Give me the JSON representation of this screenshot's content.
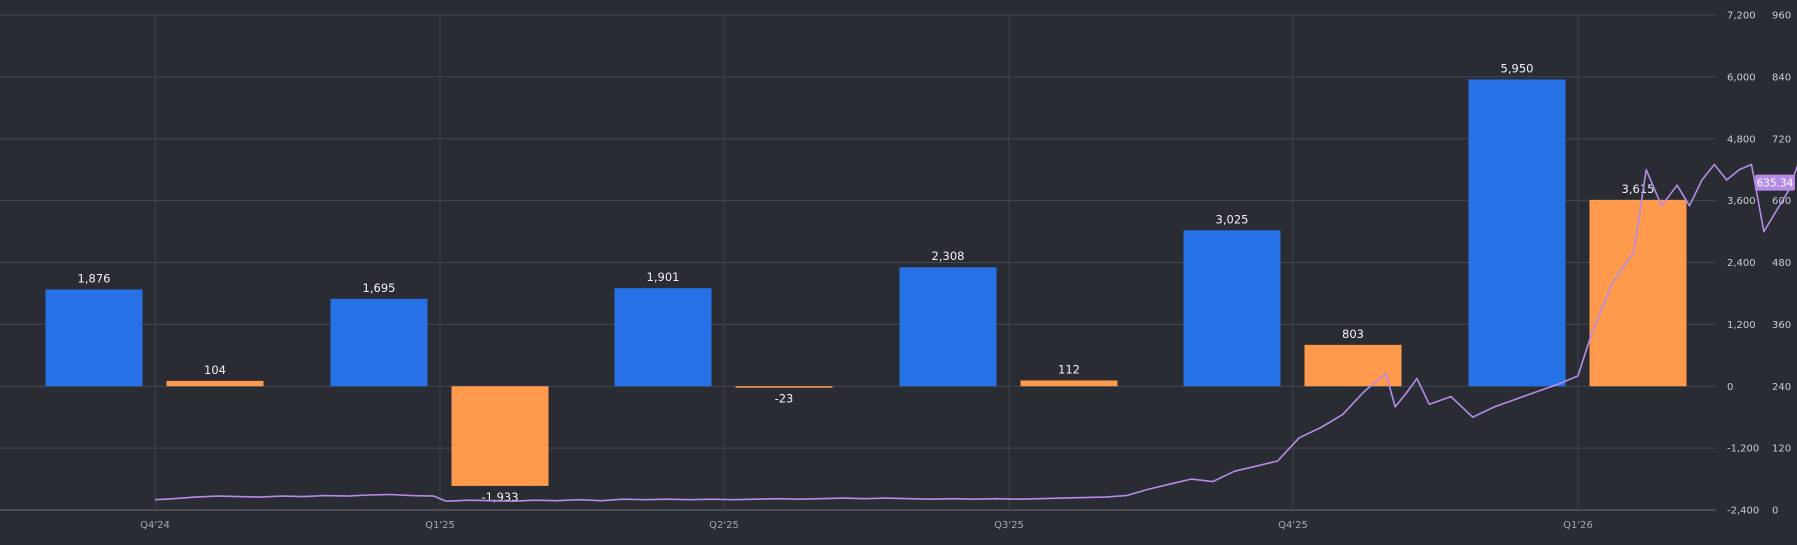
{
  "chart_data": {
    "type": "bar",
    "categories": [
      "Q4'24",
      "Q1'25",
      "Q2'25",
      "Q3'25",
      "Q4'25",
      "Q1'26"
    ],
    "series": [
      {
        "type": "bar",
        "axis": "left",
        "color": "#2671e6",
        "values": [
          1876,
          1695,
          1901,
          2308,
          3025,
          5950
        ]
      },
      {
        "type": "bar",
        "axis": "left",
        "color": "#ff9a4d",
        "values": [
          104,
          -1933,
          -23,
          112,
          803,
          3615
        ]
      },
      {
        "type": "line",
        "axis": "right",
        "color": "#b68be8",
        "current_value_label": "635.34",
        "points": [
          [
            "2024-10-01",
            20
          ],
          [
            "2024-10-07",
            22
          ],
          [
            "2024-10-14",
            25
          ],
          [
            "2024-10-21",
            27
          ],
          [
            "2024-10-28",
            26
          ],
          [
            "2024-11-04",
            25
          ],
          [
            "2024-11-11",
            27
          ],
          [
            "2024-11-18",
            26
          ],
          [
            "2024-11-25",
            28
          ],
          [
            "2024-12-02",
            27
          ],
          [
            "2024-12-09",
            29
          ],
          [
            "2024-12-16",
            30
          ],
          [
            "2024-12-23",
            28
          ],
          [
            "2024-12-30",
            27
          ],
          [
            "2025-01-03",
            17
          ],
          [
            "2025-01-10",
            19
          ],
          [
            "2025-01-17",
            18
          ],
          [
            "2025-01-24",
            17
          ],
          [
            "2025-01-31",
            19
          ],
          [
            "2025-02-07",
            18
          ],
          [
            "2025-02-14",
            20
          ],
          [
            "2025-02-21",
            18
          ],
          [
            "2025-02-28",
            21
          ],
          [
            "2025-03-07",
            20
          ],
          [
            "2025-03-14",
            21
          ],
          [
            "2025-03-21",
            20
          ],
          [
            "2025-03-28",
            21
          ],
          [
            "2025-04-04",
            20
          ],
          [
            "2025-04-11",
            21
          ],
          [
            "2025-04-18",
            22
          ],
          [
            "2025-04-25",
            21
          ],
          [
            "2025-05-02",
            22
          ],
          [
            "2025-05-09",
            23
          ],
          [
            "2025-05-16",
            22
          ],
          [
            "2025-05-23",
            23
          ],
          [
            "2025-05-30",
            22
          ],
          [
            "2025-06-06",
            21
          ],
          [
            "2025-06-13",
            22
          ],
          [
            "2025-06-20",
            21
          ],
          [
            "2025-06-27",
            22
          ],
          [
            "2025-07-04",
            21
          ],
          [
            "2025-07-11",
            22
          ],
          [
            "2025-07-18",
            23
          ],
          [
            "2025-07-25",
            24
          ],
          [
            "2025-08-01",
            25
          ],
          [
            "2025-08-08",
            28
          ],
          [
            "2025-08-15",
            40
          ],
          [
            "2025-08-22",
            50
          ],
          [
            "2025-08-29",
            60
          ],
          [
            "2025-09-05",
            55
          ],
          [
            "2025-09-12",
            75
          ],
          [
            "2025-09-19",
            85
          ],
          [
            "2025-09-26",
            95
          ],
          [
            "2025-10-03",
            140
          ],
          [
            "2025-10-10",
            160
          ],
          [
            "2025-10-17",
            185
          ],
          [
            "2025-10-24",
            230
          ],
          [
            "2025-10-31",
            265
          ],
          [
            "2025-11-03",
            200
          ],
          [
            "2025-11-07",
            230
          ],
          [
            "2025-11-10",
            255
          ],
          [
            "2025-11-14",
            205
          ],
          [
            "2025-11-21",
            220
          ],
          [
            "2025-11-28",
            180
          ],
          [
            "2025-12-05",
            200
          ],
          [
            "2025-12-12",
            215
          ],
          [
            "2025-12-19",
            230
          ],
          [
            "2025-12-26",
            245
          ],
          [
            "2026-01-01",
            260
          ],
          [
            "2026-01-05",
            335
          ],
          [
            "2026-01-12",
            440
          ],
          [
            "2026-01-19",
            500
          ],
          [
            "2026-01-23",
            660
          ],
          [
            "2026-01-28",
            590
          ],
          [
            "2026-02-02",
            630
          ],
          [
            "2026-02-06",
            590
          ],
          [
            "2026-02-10",
            640
          ],
          [
            "2026-02-14",
            670
          ],
          [
            "2026-02-18",
            640
          ],
          [
            "2026-02-22",
            660
          ],
          [
            "2026-02-26",
            670
          ],
          [
            "2026-03-02",
            540
          ],
          [
            "2026-03-06",
            580
          ],
          [
            "2026-03-10",
            620
          ],
          [
            "2026-03-16",
            720
          ],
          [
            "2026-03-20",
            765
          ],
          [
            "2026-03-24",
            710
          ],
          [
            "2026-03-27",
            690
          ],
          [
            "2026-03-30",
            590
          ],
          [
            "2026-04-03",
            635
          ]
        ]
      }
    ],
    "y_left": {
      "ticks": [
        "7,200",
        "6,000",
        "4,800",
        "3,600",
        "2,400",
        "1,200",
        "0",
        "-1,200",
        "-2,400"
      ],
      "min": -2400,
      "max": 7200
    },
    "y_right": {
      "ticks": [
        "960",
        "840",
        "720",
        "600",
        "480",
        "360",
        "240",
        "120",
        "0"
      ],
      "min": 0,
      "max": 960
    },
    "xlabel": "",
    "ylabel": "",
    "grid": true,
    "x_ticks": [
      {
        "date": "2024-10-01",
        "label": "Q4'24"
      },
      {
        "date": "2025-01-01",
        "label": "Q1'25"
      },
      {
        "date": "2025-04-01",
        "label": "Q2'25"
      },
      {
        "date": "2025-07-01",
        "label": "Q3'25"
      },
      {
        "date": "2025-10-01",
        "label": "Q4'25"
      },
      {
        "date": "2026-01-01",
        "label": "Q1'26"
      }
    ]
  }
}
